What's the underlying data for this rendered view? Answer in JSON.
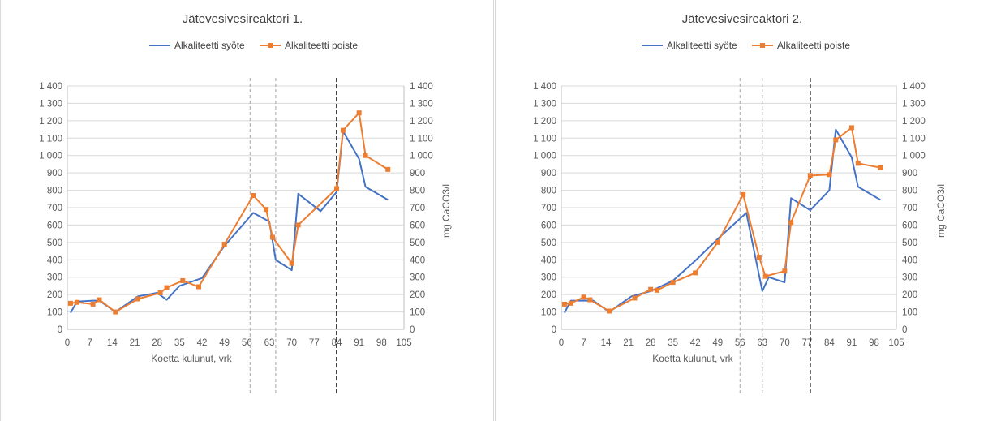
{
  "chart_data": [
    {
      "type": "line",
      "title": "Jätevesivesireaktori 1.",
      "xlabel": "Koetta kulunut, vrk",
      "ylabel": "",
      "y2label": "mg CaCO3/l",
      "xlim": [
        0,
        105
      ],
      "ylim": [
        0,
        1400
      ],
      "xticks": [
        "0",
        "7",
        "14",
        "21",
        "28",
        "35",
        "42",
        "49",
        "56",
        "63",
        "70",
        "77",
        "84",
        "91",
        "98",
        "105"
      ],
      "yticks": [
        "0",
        "100",
        "200",
        "300",
        "400",
        "500",
        "600",
        "700",
        "800",
        "900",
        "1 000",
        "1 100",
        "1 200",
        "1 300",
        "1 400"
      ],
      "grid": true,
      "legend_position": "top",
      "vlines": [
        {
          "x": 57,
          "style": "dashed",
          "color": "#a6a6a6"
        },
        {
          "x": 65,
          "style": "dashed",
          "color": "#a6a6a6"
        },
        {
          "x": 84,
          "style": "dashed",
          "color": "#000000"
        }
      ],
      "series": [
        {
          "name": "Alkaliteetti syöte",
          "color": "#4472c4",
          "marker": "none",
          "x": [
            1,
            3,
            8,
            10,
            15,
            22,
            28,
            31,
            35,
            42,
            49,
            58,
            63,
            65,
            70,
            72,
            79,
            84,
            86,
            91,
            93,
            100
          ],
          "y": [
            95,
            160,
            165,
            165,
            100,
            190,
            210,
            170,
            250,
            295,
            480,
            670,
            620,
            400,
            340,
            780,
            680,
            790,
            1140,
            980,
            820,
            745
          ]
        },
        {
          "name": "Alkaliteetti poiste",
          "color": "#ed7d31",
          "marker": "square",
          "x": [
            1,
            3,
            8,
            10,
            15,
            22,
            29,
            31,
            36,
            41,
            49,
            58,
            62,
            64,
            70,
            72,
            84,
            86,
            91,
            93,
            100
          ],
          "y": [
            150,
            155,
            145,
            170,
            100,
            175,
            210,
            240,
            280,
            245,
            490,
            770,
            690,
            530,
            380,
            600,
            810,
            1145,
            1245,
            1000,
            920
          ]
        }
      ]
    },
    {
      "type": "line",
      "title": "Jätevesivesireaktori 2.",
      "xlabel": "Koetta kulunut, vrk",
      "ylabel": "",
      "y2label": "mg CaCO3/l",
      "xlim": [
        0,
        105
      ],
      "ylim": [
        0,
        1400
      ],
      "xticks": [
        "0",
        "7",
        "14",
        "21",
        "28",
        "35",
        "42",
        "49",
        "56",
        "63",
        "70",
        "77",
        "84",
        "91",
        "98",
        "105"
      ],
      "yticks": [
        "0",
        "100",
        "200",
        "300",
        "400",
        "500",
        "600",
        "700",
        "800",
        "900",
        "1 000",
        "1 100",
        "1 200",
        "1 300",
        "1 400"
      ],
      "grid": true,
      "legend_position": "top",
      "vlines": [
        {
          "x": 56,
          "style": "dashed",
          "color": "#a6a6a6"
        },
        {
          "x": 63,
          "style": "dashed",
          "color": "#a6a6a6"
        },
        {
          "x": 78,
          "style": "dashed",
          "color": "#000000"
        }
      ],
      "series": [
        {
          "name": "Alkaliteetti syöte",
          "color": "#4472c4",
          "marker": "none",
          "x": [
            1,
            3,
            8,
            10,
            15,
            22,
            28,
            35,
            42,
            49,
            58,
            63,
            65,
            70,
            72,
            78,
            84,
            86,
            91,
            93,
            100
          ],
          "y": [
            95,
            165,
            165,
            165,
            100,
            190,
            220,
            280,
            395,
            520,
            670,
            220,
            300,
            270,
            755,
            685,
            800,
            1150,
            990,
            820,
            745
          ]
        },
        {
          "name": "Alkaliteetti poiste",
          "color": "#ed7d31",
          "marker": "square",
          "x": [
            1,
            3,
            7,
            9,
            15,
            23,
            28,
            30,
            35,
            42,
            49,
            57,
            62,
            64,
            70,
            72,
            78,
            84,
            86,
            91,
            93,
            100
          ],
          "y": [
            145,
            150,
            185,
            170,
            105,
            180,
            230,
            225,
            270,
            325,
            500,
            775,
            415,
            305,
            335,
            615,
            885,
            890,
            1090,
            1160,
            955,
            930
          ]
        }
      ]
    }
  ]
}
